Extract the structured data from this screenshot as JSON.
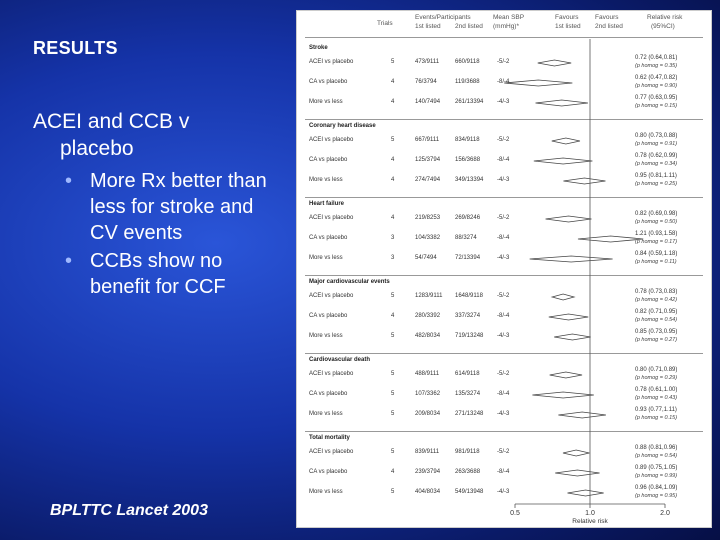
{
  "slide": {
    "title": "RESULTS",
    "heading_line1": "ACEI and CCB v",
    "heading_line2": "placebo",
    "bullets": [
      "More Rx better than less for stroke and CV events",
      "CCBs show no benefit for CCF"
    ],
    "citation": "BPLTTC Lancet 2003"
  },
  "figure": {
    "headers": {
      "trials": "Trials",
      "events": "Events/Participants",
      "first_listed": "1st listed",
      "second_listed": "2nd listed",
      "mean_bp": "Mean SBP",
      "mmhg": "(mmHg)*",
      "favours1": "Favours",
      "favours1_sub": "1st listed",
      "favours2": "Favours",
      "favours2_sub": "2nd listed",
      "relrisk": "Relative risk",
      "ci": "(95%CI)"
    },
    "xaxis": {
      "ticks": [
        "0.5",
        "1.0",
        "2.0"
      ],
      "label": "Relative risk"
    },
    "sections": [
      {
        "name": "Stroke",
        "rows": [
          {
            "label": "ACEI vs placebo",
            "trials": "5",
            "ev1": "473/9111",
            "ev2": "660/9118",
            "bp": "-5/-2",
            "rr": "0.72 (0.64,0.81)",
            "est": 0.72,
            "lo": 0.64,
            "hi": 0.81
          },
          {
            "label": "CA vs placebo",
            "trials": "4",
            "ev1": "76/3794",
            "ev2": "119/3688",
            "bp": "-8/-4",
            "rr": "0.62 (0.47,0.82)",
            "est": 0.62,
            "lo": 0.47,
            "hi": 0.82
          },
          {
            "label": "More vs less",
            "trials": "4",
            "ev1": "140/7494",
            "ev2": "261/13394",
            "bp": "-4/-3",
            "rr": "0.77 (0.63,0.95)",
            "est": 0.77,
            "lo": 0.63,
            "hi": 0.95
          }
        ],
        "phomog": [
          "(p homog = 0.35)",
          "(p homog = 0.90)",
          "(p homog = 0.15)"
        ]
      },
      {
        "name": "Coronary heart disease",
        "rows": [
          {
            "label": "ACEI vs placebo",
            "trials": "5",
            "ev1": "667/9111",
            "ev2": "834/9118",
            "bp": "-5/-2",
            "rr": "0.80 (0.73,0.88)",
            "est": 0.8,
            "lo": 0.73,
            "hi": 0.88
          },
          {
            "label": "CA vs placebo",
            "trials": "4",
            "ev1": "125/3794",
            "ev2": "156/3688",
            "bp": "-8/-4",
            "rr": "0.78 (0.62,0.99)",
            "est": 0.78,
            "lo": 0.62,
            "hi": 0.99
          },
          {
            "label": "More vs less",
            "trials": "4",
            "ev1": "274/7494",
            "ev2": "349/13394",
            "bp": "-4/-3",
            "rr": "0.95 (0.81,1.11)",
            "est": 0.95,
            "lo": 0.81,
            "hi": 1.11
          }
        ],
        "phomog": [
          "(p homog = 0.91)",
          "(p homog = 0.34)",
          "(p homog = 0.25)"
        ]
      },
      {
        "name": "Heart failure",
        "rows": [
          {
            "label": "ACEI vs placebo",
            "trials": "4",
            "ev1": "219/8253",
            "ev2": "269/8246",
            "bp": "-5/-2",
            "rr": "0.82 (0.69,0.98)",
            "est": 0.82,
            "lo": 0.69,
            "hi": 0.98
          },
          {
            "label": "CA vs placebo",
            "trials": "3",
            "ev1": "104/3382",
            "ev2": "88/3274",
            "bp": "-8/-4",
            "rr": "1.21 (0.93,1.58)",
            "est": 1.21,
            "lo": 0.93,
            "hi": 1.58
          },
          {
            "label": "More vs less",
            "trials": "3",
            "ev1": "54/7494",
            "ev2": "72/13394",
            "bp": "-4/-3",
            "rr": "0.84 (0.59,1.18)",
            "est": 0.84,
            "lo": 0.59,
            "hi": 1.18
          }
        ],
        "phomog": [
          "(p homog = 0.50)",
          "(p homog = 0.17)",
          "(p homog = 0.11)"
        ]
      },
      {
        "name": "Major cardiovascular events",
        "rows": [
          {
            "label": "ACEI vs placebo",
            "trials": "5",
            "ev1": "1283/9111",
            "ev2": "1648/9118",
            "bp": "-5/-2",
            "rr": "0.78 (0.73,0.83)",
            "est": 0.78,
            "lo": 0.73,
            "hi": 0.83
          },
          {
            "label": "CA vs placebo",
            "trials": "4",
            "ev1": "280/3392",
            "ev2": "337/3274",
            "bp": "-8/-4",
            "rr": "0.82 (0.71,0.95)",
            "est": 0.82,
            "lo": 0.71,
            "hi": 0.95
          },
          {
            "label": "More vs less",
            "trials": "5",
            "ev1": "482/8034",
            "ev2": "719/13248",
            "bp": "-4/-3",
            "rr": "0.85 (0.73,0.95)",
            "est": 0.85,
            "lo": 0.73,
            "hi": 0.95
          }
        ],
        "phomog": [
          "(p homog = 0.42)",
          "(p homog = 0.54)",
          "(p homog = 0.27)"
        ]
      },
      {
        "name": "Cardiovascular death",
        "rows": [
          {
            "label": "ACEI vs placebo",
            "trials": "5",
            "ev1": "488/9111",
            "ev2": "614/9118",
            "bp": "-5/-2",
            "rr": "0.80 (0.71,0.89)",
            "est": 0.8,
            "lo": 0.71,
            "hi": 0.89
          },
          {
            "label": "CA vs placebo",
            "trials": "5",
            "ev1": "107/3362",
            "ev2": "135/3274",
            "bp": "-8/-4",
            "rr": "0.78 (0.61,1.00)",
            "est": 0.78,
            "lo": 0.61,
            "hi": 1.0
          },
          {
            "label": "More vs less",
            "trials": "5",
            "ev1": "209/8034",
            "ev2": "271/13248",
            "bp": "-4/-3",
            "rr": "0.93 (0.77,1.11)",
            "est": 0.93,
            "lo": 0.77,
            "hi": 1.11
          }
        ],
        "phomog": [
          "(p homog = 0.29)",
          "(p homog = 0.43)",
          "(p homog = 0.15)"
        ]
      },
      {
        "name": "Total mortality",
        "rows": [
          {
            "label": "ACEI vs placebo",
            "trials": "5",
            "ev1": "839/9111",
            "ev2": "981/9118",
            "bp": "-5/-2",
            "rr": "0.88 (0.81,0.96)",
            "est": 0.88,
            "lo": 0.81,
            "hi": 0.96
          },
          {
            "label": "CA vs placebo",
            "trials": "4",
            "ev1": "239/3794",
            "ev2": "263/3688",
            "bp": "-8/-4",
            "rr": "0.89 (0.75,1.05)",
            "est": 0.89,
            "lo": 0.75,
            "hi": 1.05
          },
          {
            "label": "More vs less",
            "trials": "5",
            "ev1": "404/8034",
            "ev2": "549/13948",
            "bp": "-4/-3",
            "rr": "0.96 (0.84,1.09)",
            "est": 0.96,
            "lo": 0.84,
            "hi": 1.09
          }
        ],
        "phomog": [
          "(p homog = 0.54)",
          "(p homog = 0.99)",
          "(p homog = 0.95)"
        ]
      }
    ]
  }
}
